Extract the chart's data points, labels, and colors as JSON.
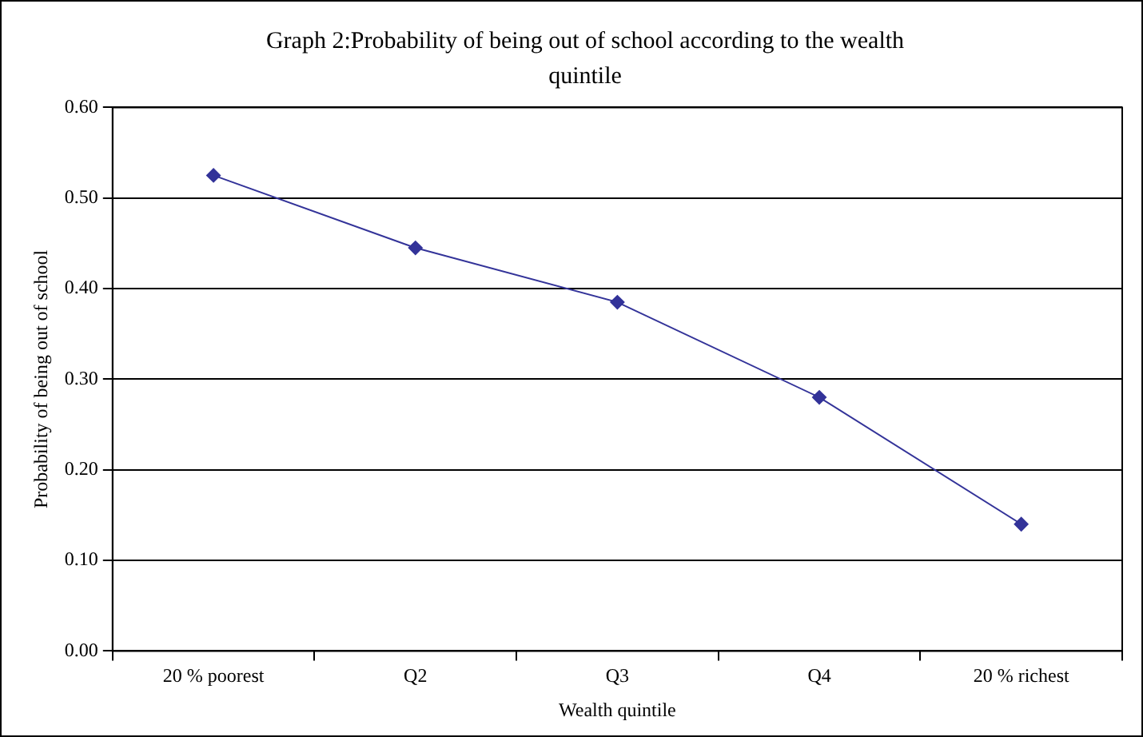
{
  "chart_data": {
    "type": "line",
    "title": "Graph 2:Probability of being out of school according to the wealth quintile",
    "xlabel": "Wealth quintile",
    "ylabel": "Probability of being out of school",
    "categories": [
      "20 % poorest",
      "Q2",
      "Q3",
      "Q4",
      "20 % richest"
    ],
    "series": [
      {
        "color": "#333399",
        "values": [
          0.525,
          0.445,
          0.385,
          0.28,
          0.14
        ]
      }
    ],
    "ylim": [
      0,
      0.6
    ],
    "yticks": [
      {
        "value": 0,
        "label": "0.00"
      },
      {
        "value": 0.1,
        "label": "0.10"
      },
      {
        "value": 0.2,
        "label": "0.20"
      },
      {
        "value": 0.3,
        "label": "0.30"
      },
      {
        "value": 0.4,
        "label": "0.40"
      },
      {
        "value": 0.5,
        "label": "0.50"
      },
      {
        "value": 0.6,
        "label": "0.60"
      }
    ],
    "grid": "y",
    "marker": "diamond",
    "line_style": "solid",
    "legend": false
  }
}
